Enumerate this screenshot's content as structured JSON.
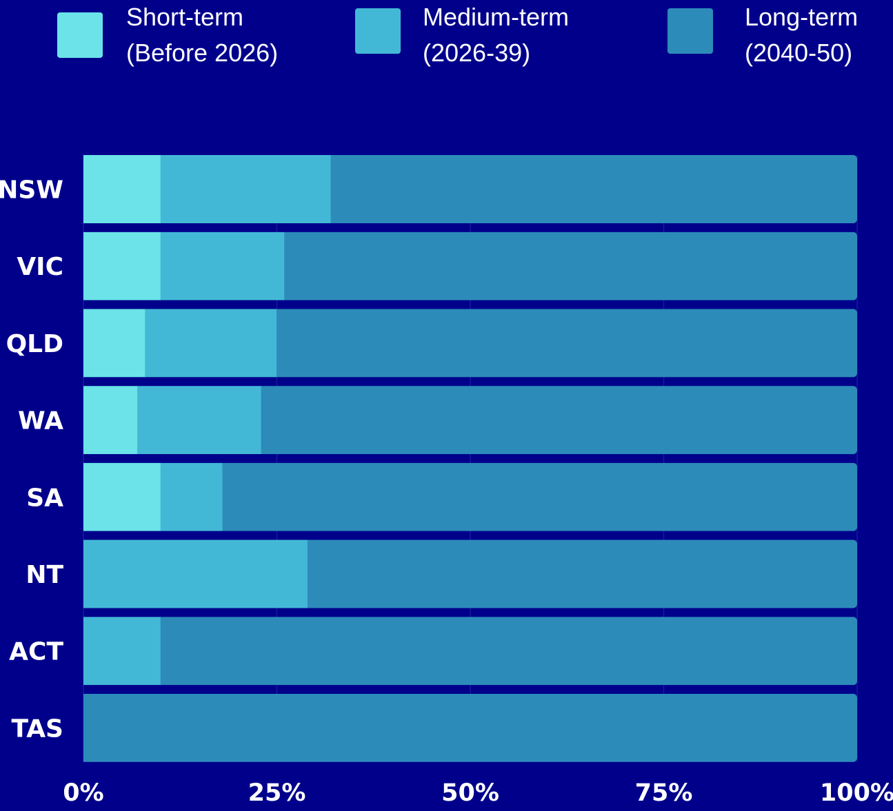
{
  "chart_data": {
    "type": "bar",
    "orientation": "horizontal",
    "stacked": true,
    "normalized": true,
    "categories": [
      "NSW",
      "VIC",
      "QLD",
      "WA",
      "SA",
      "NT",
      "ACT",
      "TAS"
    ],
    "series": [
      {
        "name": "Short-term (Before 2026)",
        "name_lines": [
          "Short-term",
          "(Before 2026)"
        ],
        "color": "#6BE3E8",
        "values": [
          10,
          10,
          8,
          7,
          10,
          0,
          0,
          0
        ]
      },
      {
        "name": "Medium-term (2026-39)",
        "name_lines": [
          "Medium-term",
          "(2026-39)"
        ],
        "color": "#43B8D6",
        "values": [
          22,
          16,
          17,
          16,
          8,
          29,
          10,
          0
        ]
      },
      {
        "name": "Long-term (2040-50)",
        "name_lines": [
          "Long-term",
          "(2040-50)"
        ],
        "color": "#2D8BBA",
        "values": [
          68,
          74,
          75,
          77,
          82,
          71,
          90,
          100
        ]
      }
    ],
    "xlim": [
      0,
      100
    ],
    "xticks": [
      0,
      25,
      50,
      75,
      100
    ],
    "xtick_labels": [
      "0%",
      "25%",
      "50%",
      "75%",
      "100%"
    ],
    "grid": true,
    "legend_position": "top",
    "title": "",
    "xlabel": "",
    "ylabel": ""
  },
  "colors": {
    "background": "#00008B",
    "gridline": "#1A1A99",
    "text": "#FFFFFF"
  }
}
